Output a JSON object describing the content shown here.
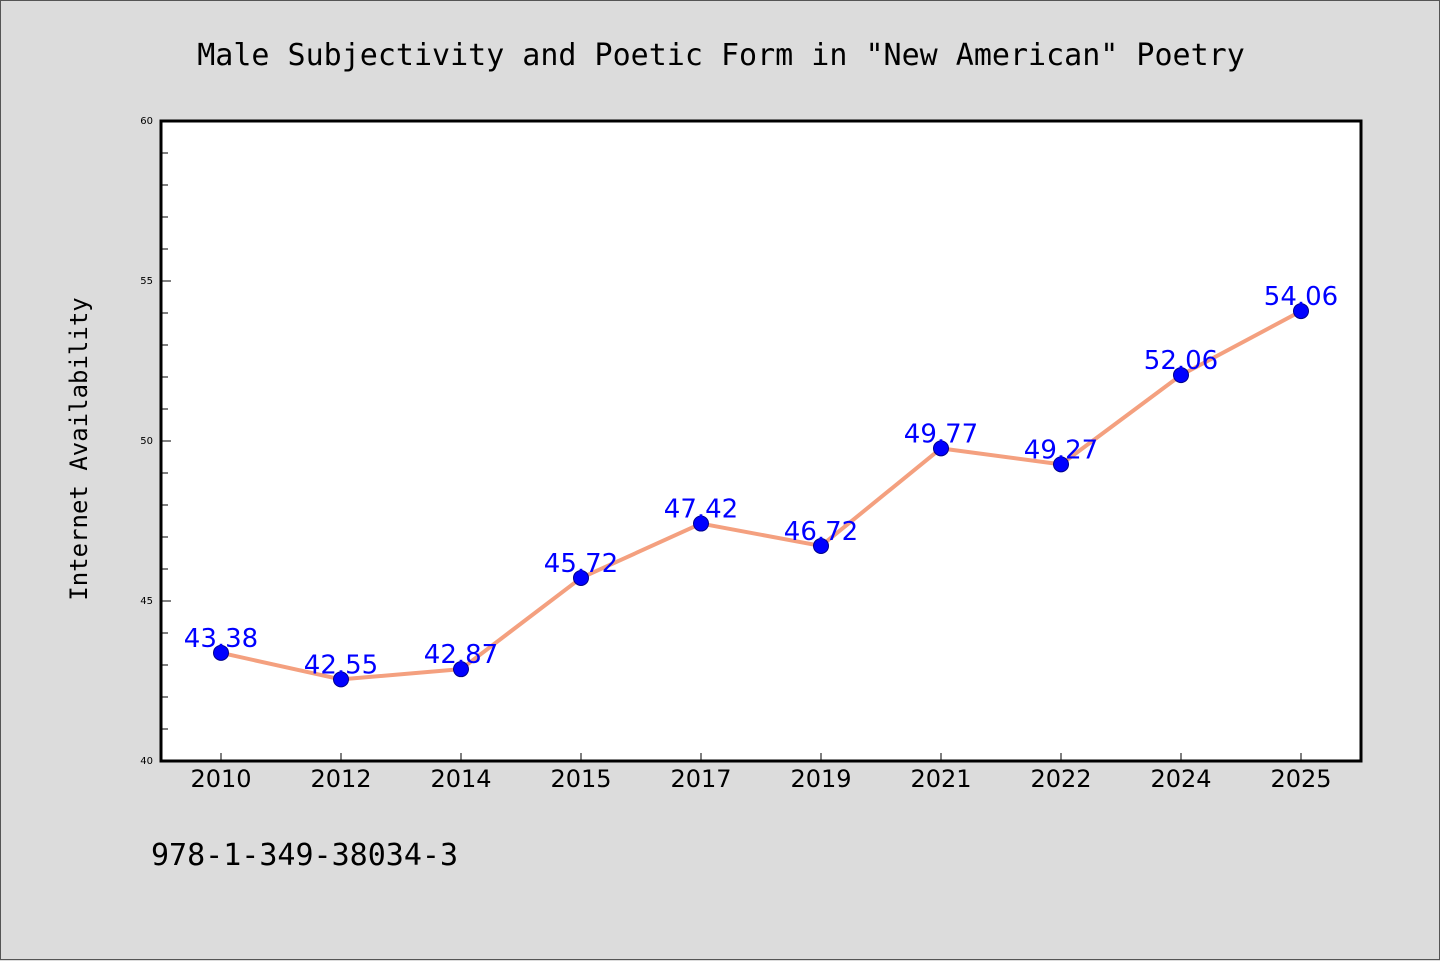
{
  "chart_data": {
    "type": "line",
    "title": "Male Subjectivity and Poetic Form in \"New American\" Poetry",
    "xlabel": "",
    "ylabel": "Internet Availability",
    "categories": [
      "2010",
      "2012",
      "2014",
      "2015",
      "2017",
      "2019",
      "2021",
      "2022",
      "2024",
      "2025"
    ],
    "series": [
      {
        "values": [
          43.38,
          42.55,
          42.87,
          45.72,
          47.42,
          46.72,
          49.77,
          49.27,
          52.06,
          54.06
        ],
        "labels": [
          "43.38",
          "42.55",
          "42.87",
          "45.72",
          "47.42",
          "46.72",
          "49.77",
          "49.27",
          "52.06",
          "54.06"
        ],
        "line_color": "#f4a07f",
        "marker_color": "#0000ff"
      }
    ],
    "ylim": [
      40,
      60
    ],
    "yticks": [
      40,
      45,
      50,
      55,
      60
    ],
    "ytick_labels": [
      "40",
      "45",
      "50",
      "55",
      "60"
    ],
    "grid": false,
    "legend": "none"
  },
  "footer": {
    "isbn": "978-1-349-38034-3"
  },
  "colors": {
    "background": "#dcdcdc",
    "plot_background": "#ffffff",
    "line": "#f4a07f",
    "marker": "#0000ff",
    "label": "#0000ff"
  }
}
